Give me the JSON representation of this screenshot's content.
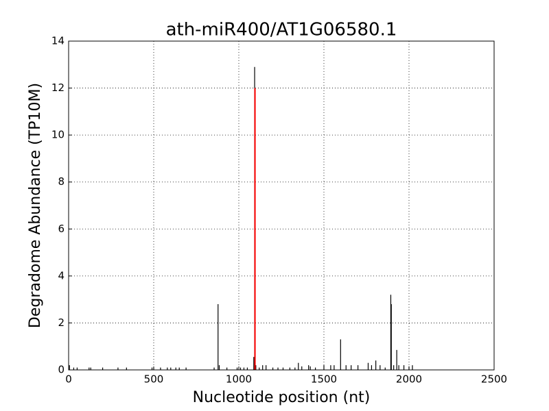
{
  "chart_data": {
    "type": "bar",
    "title": "ath-miR400/AT1G06580.1",
    "x_label": "Nucleotide position (nt)",
    "y_label": "Degradome Abundance (TP10M)",
    "xlim": [
      0,
      2500
    ],
    "xticks": [
      0,
      500,
      1000,
      1500,
      2000,
      2500
    ],
    "ylim": [
      0,
      14
    ],
    "yticks": [
      0,
      2,
      4,
      6,
      8,
      10,
      12,
      14
    ],
    "grid": true,
    "series": [
      {
        "color": "#000000",
        "x": [
          5,
          30,
          50,
          120,
          130,
          200,
          290,
          340,
          490,
          500,
          540,
          580,
          600,
          630,
          650,
          690,
          855,
          878,
          885,
          930,
          990,
          1010,
          1030,
          1050,
          1088,
          1093,
          1100,
          1120,
          1140,
          1160,
          1200,
          1230,
          1260,
          1300,
          1330,
          1350,
          1370,
          1410,
          1420,
          1450,
          1500,
          1540,
          1560,
          1598,
          1630,
          1660,
          1700,
          1760,
          1780,
          1805,
          1830,
          1860,
          1893,
          1896,
          1910,
          1928,
          1940,
          1970,
          2000,
          2020
        ],
        "values": [
          0.2,
          0.1,
          0.1,
          0.1,
          0.1,
          0.1,
          0.1,
          0.1,
          0.1,
          0.1,
          0.1,
          0.1,
          0.1,
          0.1,
          0.1,
          0.1,
          0.1,
          2.8,
          0.2,
          0.1,
          0.1,
          0.1,
          0.1,
          0.1,
          0.55,
          12.9,
          0.2,
          0.1,
          0.2,
          0.2,
          0.1,
          0.1,
          0.1,
          0.1,
          0.1,
          0.3,
          0.15,
          0.2,
          0.15,
          0.1,
          0.2,
          0.2,
          0.2,
          1.3,
          0.2,
          0.2,
          0.2,
          0.3,
          0.2,
          0.4,
          0.2,
          0.1,
          3.2,
          2.8,
          0.2,
          0.85,
          0.2,
          0.2,
          0.15,
          0.2
        ]
      },
      {
        "color": "#ff0000",
        "x": [
          1095
        ],
        "values": [
          12
        ]
      }
    ]
  }
}
